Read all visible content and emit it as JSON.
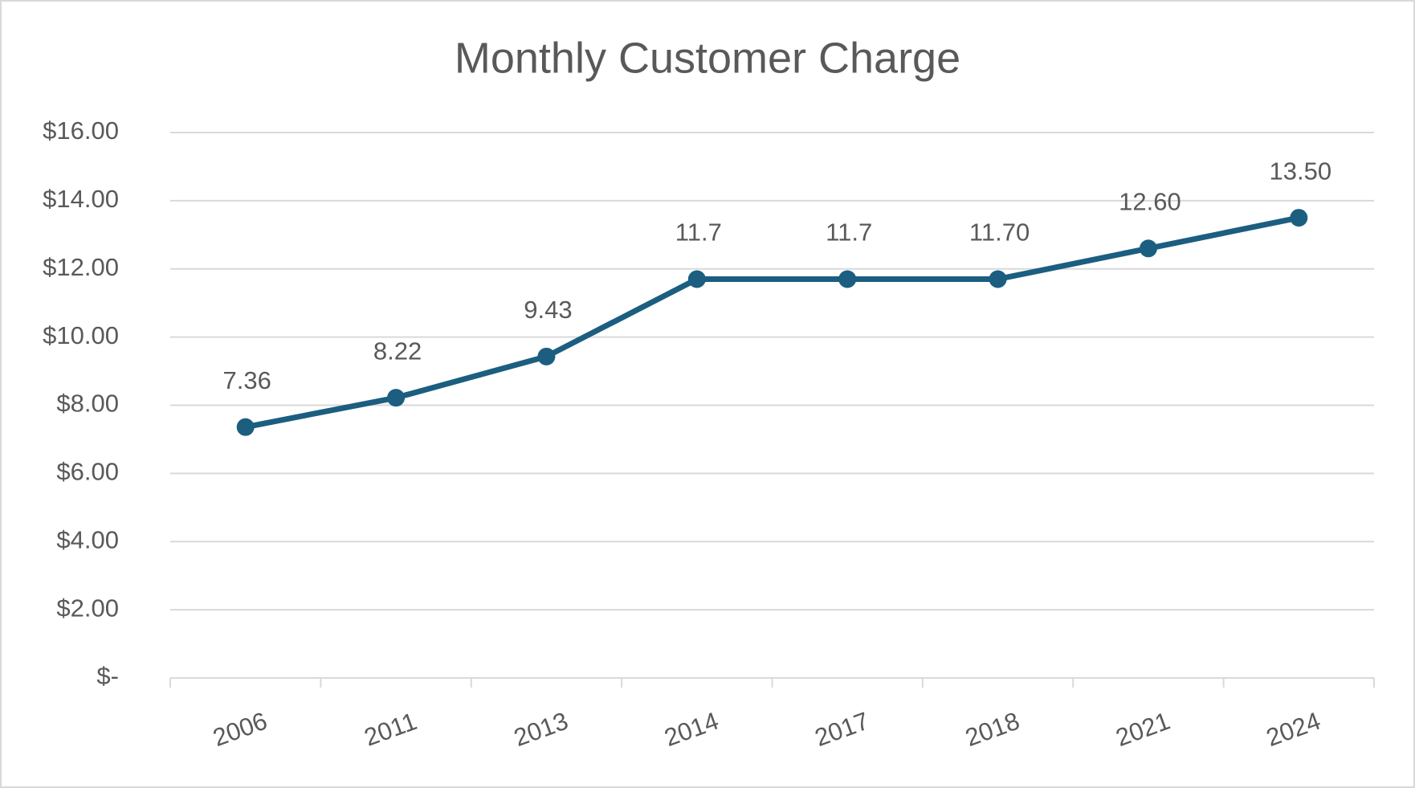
{
  "chart_data": {
    "type": "line",
    "title": "Monthly Customer Charge",
    "categories": [
      "2006",
      "2011",
      "2013",
      "2014",
      "2017",
      "2018",
      "2021",
      "2024"
    ],
    "series": [
      {
        "name": "Monthly Customer Charge",
        "color": "#1b5e80",
        "values": [
          7.36,
          8.22,
          9.43,
          11.7,
          11.7,
          11.7,
          12.6,
          13.5
        ],
        "value_labels": [
          "7.36",
          "8.22",
          "9.43",
          "11.7",
          "11.7",
          "11.70",
          "12.60",
          "13.50"
        ]
      }
    ],
    "ylim": [
      0,
      16
    ],
    "yticks": [
      {
        "value": 0,
        "label": "$-"
      },
      {
        "value": 2,
        "label": "$2.00"
      },
      {
        "value": 4,
        "label": "$4.00"
      },
      {
        "value": 6,
        "label": "$6.00"
      },
      {
        "value": 8,
        "label": "$8.00"
      },
      {
        "value": 10,
        "label": "$10.00"
      },
      {
        "value": 12,
        "label": "$12.00"
      },
      {
        "value": 14,
        "label": "$14.00"
      },
      {
        "value": 16,
        "label": "$16.00"
      }
    ],
    "grid": true
  }
}
